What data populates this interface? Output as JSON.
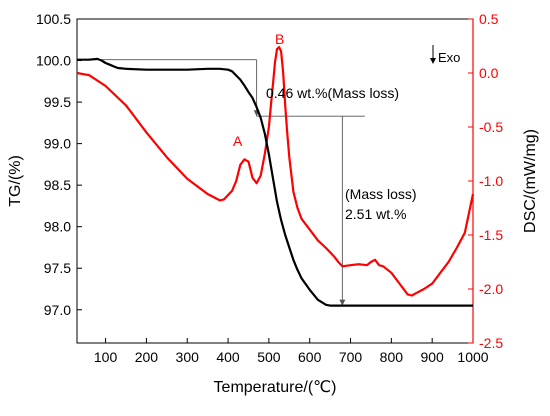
{
  "chart_data": {
    "type": "line",
    "xlabel": "Temperature/(℃)",
    "ylabel_left": "TG/(%)",
    "ylabel_right": "DSC/(mW/mg)",
    "xlim": [
      30,
      1000
    ],
    "ylim_left": [
      96.6,
      100.5
    ],
    "ylim_right": [
      -2.5,
      0.5
    ],
    "x_ticks": [
      100,
      200,
      300,
      400,
      500,
      600,
      700,
      800,
      900,
      1000
    ],
    "y_ticks_left": [
      97.0,
      97.5,
      98.0,
      98.5,
      99.0,
      99.5,
      100.0,
      100.5
    ],
    "y_ticks_left_labels": [
      "97.0",
      "97.5",
      "98.0",
      "98.5",
      "99.0",
      "99.5",
      "100.0",
      "100.5"
    ],
    "y_ticks_right": [
      -2.5,
      -2.0,
      -1.5,
      -1.0,
      -0.5,
      0.0,
      0.5
    ],
    "y_ticks_right_labels": [
      "-2.5",
      "-2.0",
      "-1.5",
      "-1.0",
      "-0.5",
      "0.0",
      "0.5"
    ],
    "grid": false,
    "colors": {
      "tg": "#000000",
      "dsc": "#ff0000",
      "annotation": "#555555"
    },
    "series": [
      {
        "name": "TG",
        "axis": "left",
        "x": [
          30,
          60,
          80,
          90,
          100,
          110,
          120,
          130,
          150,
          200,
          250,
          300,
          350,
          380,
          400,
          410,
          420,
          430,
          440,
          450,
          460,
          470,
          480,
          490,
          500,
          510,
          520,
          530,
          540,
          550,
          560,
          570,
          580,
          600,
          620,
          640,
          650,
          700,
          800,
          900,
          1000
        ],
        "y": [
          100.01,
          100.01,
          100.02,
          100.0,
          99.97,
          99.95,
          99.93,
          99.91,
          99.9,
          99.89,
          99.89,
          99.89,
          99.9,
          99.9,
          99.89,
          99.87,
          99.82,
          99.77,
          99.7,
          99.62,
          99.55,
          99.44,
          99.31,
          99.12,
          98.87,
          98.58,
          98.3,
          98.08,
          97.9,
          97.75,
          97.6,
          97.48,
          97.38,
          97.24,
          97.12,
          97.06,
          97.05,
          97.05,
          97.05,
          97.05,
          97.05
        ]
      },
      {
        "name": "DSC",
        "axis": "right",
        "x": [
          30,
          60,
          100,
          150,
          200,
          250,
          300,
          350,
          380,
          390,
          400,
          410,
          420,
          430,
          440,
          450,
          460,
          470,
          480,
          490,
          500,
          505,
          510,
          515,
          520,
          525,
          530,
          535,
          540,
          545,
          550,
          560,
          570,
          580,
          600,
          620,
          640,
          660,
          670,
          680,
          700,
          720,
          740,
          750,
          760,
          770,
          780,
          800,
          820,
          840,
          850,
          860,
          880,
          900,
          920,
          940,
          960,
          980,
          990,
          1000
        ],
        "y": [
          0.0,
          -0.02,
          -0.12,
          -0.3,
          -0.55,
          -0.78,
          -0.98,
          -1.12,
          -1.18,
          -1.17,
          -1.13,
          -1.09,
          -1.0,
          -0.85,
          -0.8,
          -0.82,
          -0.97,
          -1.02,
          -0.95,
          -0.75,
          -0.5,
          -0.3,
          -0.1,
          0.1,
          0.22,
          0.24,
          0.2,
          0.0,
          -0.3,
          -0.55,
          -0.78,
          -1.1,
          -1.25,
          -1.35,
          -1.45,
          -1.55,
          -1.62,
          -1.7,
          -1.75,
          -1.79,
          -1.78,
          -1.77,
          -1.78,
          -1.75,
          -1.73,
          -1.78,
          -1.79,
          -1.85,
          -1.95,
          -2.05,
          -2.06,
          -2.04,
          -2.0,
          -1.95,
          -1.85,
          -1.75,
          -1.62,
          -1.48,
          -1.3,
          -1.12
        ]
      }
    ],
    "annotations": {
      "peak_a": "A",
      "peak_b": "B",
      "exo": "Exo",
      "mass_loss_1": "0.46 wt.%(Mass loss)",
      "mass_loss_2_line1": "(Mass loss)",
      "mass_loss_2_line2": "2.51 wt.%"
    }
  }
}
